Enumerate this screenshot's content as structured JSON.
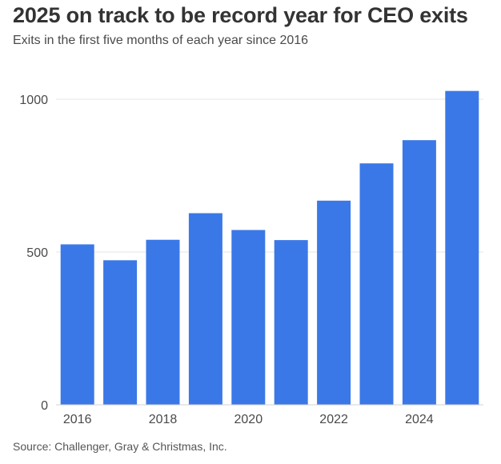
{
  "header": {
    "title": "2025 on track to be record year for CEO exits",
    "subtitle": "Exits in the first five months of each year since 2016"
  },
  "footer": {
    "source": "Source: Challenger, Gray & Christmas, Inc."
  },
  "colors": {
    "bar": "#3b78e7",
    "grid": "#e6e6e6",
    "axis_text": "#4a4a4a"
  },
  "chart_data": {
    "type": "bar",
    "title": "2025 on track to be record year for CEO exits",
    "subtitle": "Exits in the first five months of each year since 2016",
    "categories": [
      "2016",
      "2017",
      "2018",
      "2019",
      "2020",
      "2021",
      "2022",
      "2023",
      "2024",
      "2025"
    ],
    "x_tick_labels": [
      "2016",
      "",
      "2018",
      "",
      "2020",
      "",
      "2022",
      "",
      "2024",
      ""
    ],
    "values": [
      525,
      473,
      540,
      627,
      572,
      539,
      668,
      790,
      866,
      1027
    ],
    "y_ticks": [
      0,
      500,
      1000
    ],
    "ylim": [
      0,
      1100
    ],
    "xlabel": "",
    "ylabel": "",
    "grid": true,
    "legend": "none"
  }
}
